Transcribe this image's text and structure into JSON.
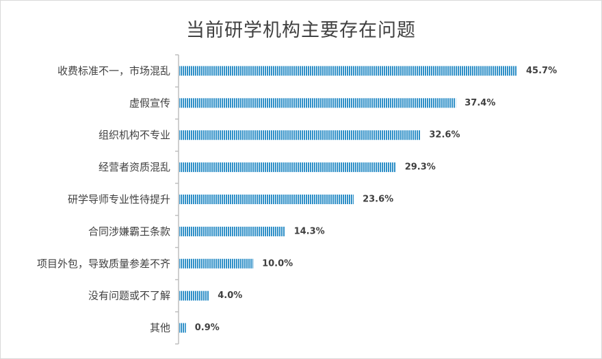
{
  "chart_data": {
    "type": "bar",
    "orientation": "horizontal",
    "title": "当前研学机构主要存在问题",
    "categories": [
      "收费标准不一，市场混乱",
      "虚假宣传",
      "组织机构不专业",
      "经营者资质混乱",
      "研学导师专业性待提升",
      "合同涉嫌霸王条款",
      "项目外包，导致质量参差不齐",
      "没有问题或不了解",
      "其他"
    ],
    "values": [
      45.7,
      37.4,
      32.6,
      29.3,
      23.6,
      14.3,
      10.0,
      4.0,
      0.9
    ],
    "value_labels": [
      "45.7%",
      "37.4%",
      "32.6%",
      "29.3%",
      "23.6%",
      "14.3%",
      "10.0%",
      "4.0%",
      "0.9%"
    ],
    "xlim": [
      0,
      50
    ],
    "grid": false,
    "legend": "none",
    "bar_color": "#2e8fc7",
    "bar_stripe_color": "#ffffff",
    "axis_color": "#bfbfbf"
  }
}
